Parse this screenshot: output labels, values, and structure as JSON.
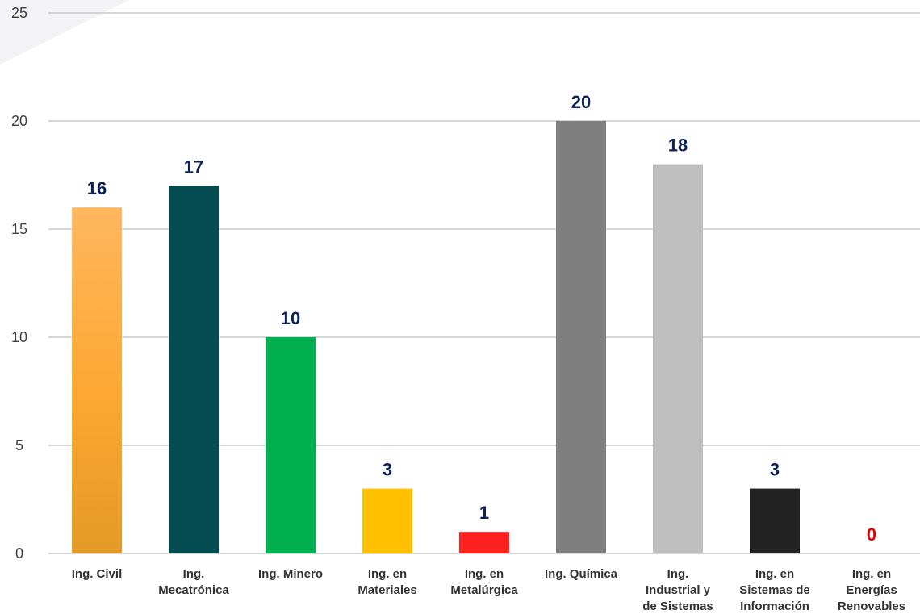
{
  "chart_data": {
    "type": "bar",
    "title": "",
    "xlabel": "",
    "ylabel": "",
    "ylim": [
      0,
      25
    ],
    "yticks": [
      0,
      5,
      10,
      15,
      20,
      25
    ],
    "grid": true,
    "legend": "none",
    "categories": [
      [
        "Ing. Civil"
      ],
      [
        "Ing.",
        "Mecatrónica"
      ],
      [
        "Ing. Minero"
      ],
      [
        "Ing. en",
        "Materiales"
      ],
      [
        "Ing. en",
        "Metalúrgica"
      ],
      [
        "Ing. Química"
      ],
      [
        "Ing.",
        "Industrial y",
        "de Sistemas"
      ],
      [
        "Ing. en",
        "Sistemas de",
        "Información"
      ],
      [
        "Ing. en",
        "Energías",
        "Renovables"
      ]
    ],
    "values": [
      16,
      17,
      10,
      3,
      1,
      20,
      18,
      3,
      0
    ],
    "bar_colors": [
      "#f5a73a",
      "#054b52",
      "#00b050",
      "#ffc000",
      "#ff2020",
      "#7f7f7f",
      "#bfbfbf",
      "#222222",
      "#ffffff"
    ],
    "label_colors": [
      "#0d2357",
      "#0d2357",
      "#0d2357",
      "#0d2357",
      "#0d2357",
      "#0d2357",
      "#0d2357",
      "#0d2357",
      "#e00000"
    ]
  }
}
